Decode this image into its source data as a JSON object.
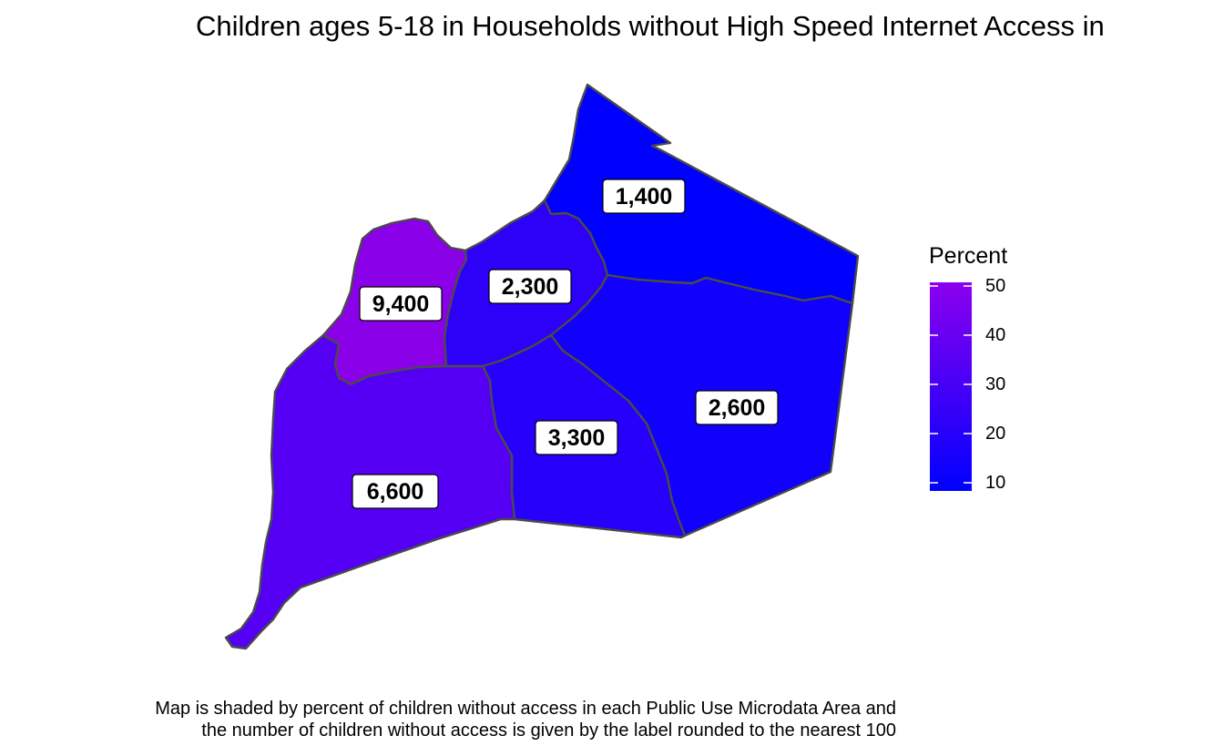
{
  "title": "Children ages 5-18 in Households without High Speed Internet Access in",
  "legend": {
    "title": "Percent",
    "ticks": [
      "50",
      "40",
      "30",
      "20",
      "10"
    ],
    "color_low": "#0000ff",
    "color_high": "#8c00ee"
  },
  "regions": [
    {
      "label": "1,400",
      "percent": 6,
      "color": "#0000ff"
    },
    {
      "label": "2,300",
      "percent": 22,
      "color": "#2d00f8"
    },
    {
      "label": "9,400",
      "percent": 50,
      "color": "#8a00e9"
    },
    {
      "label": "2,600",
      "percent": 12,
      "color": "#1000fc"
    },
    {
      "label": "3,300",
      "percent": 20,
      "color": "#2600fa"
    },
    {
      "label": "6,600",
      "percent": 33,
      "color": "#5500f5"
    }
  ],
  "caption": {
    "line1": "Map is shaded by percent of children without access in each Public Use Microdata Area and",
    "line2": "the number of children without access is given by the label rounded to the nearest 100"
  }
}
